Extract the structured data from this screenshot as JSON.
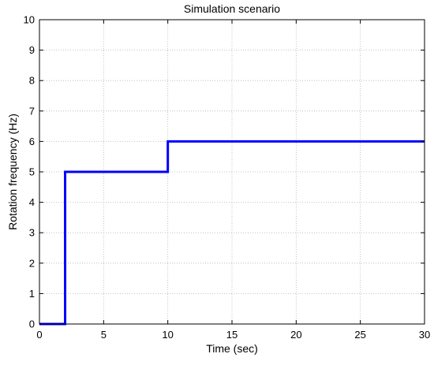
{
  "chart_data": {
    "type": "line",
    "title": "Simulation scenario",
    "xlabel": "Time (sec)",
    "ylabel": "Rotation frequency (Hz)",
    "xlim": [
      0,
      30
    ],
    "ylim": [
      0,
      10
    ],
    "xticks": [
      0,
      5,
      10,
      15,
      20,
      25,
      30
    ],
    "yticks": [
      0,
      1,
      2,
      3,
      4,
      5,
      6,
      7,
      8,
      9,
      10
    ],
    "grid": true,
    "series": [
      {
        "color": "#0000ff",
        "x": [
          0,
          2,
          2,
          10,
          10,
          30
        ],
        "y": [
          0,
          0,
          5,
          5,
          6,
          6
        ]
      }
    ]
  }
}
